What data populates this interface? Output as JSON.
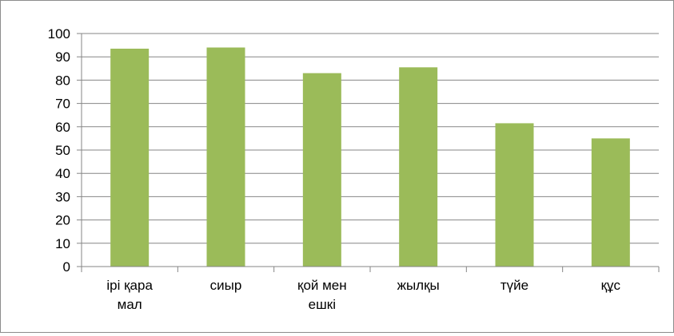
{
  "chart_data": {
    "type": "bar",
    "title": "",
    "xlabel": "",
    "ylabel": "",
    "categories": [
      [
        "ірі қара",
        "мал"
      ],
      [
        "сиыр"
      ],
      [
        "қой мен",
        "ешкі"
      ],
      [
        "жылқы"
      ],
      [
        "түйе"
      ],
      [
        "құс"
      ]
    ],
    "values": [
      93.5,
      94,
      83,
      85.5,
      61.5,
      55
    ],
    "ylim": [
      0,
      100
    ],
    "yticks": [
      0,
      10,
      20,
      30,
      40,
      50,
      60,
      70,
      80,
      90,
      100
    ],
    "grid": true,
    "legend": "none",
    "bar_color": "#9bbb59"
  }
}
